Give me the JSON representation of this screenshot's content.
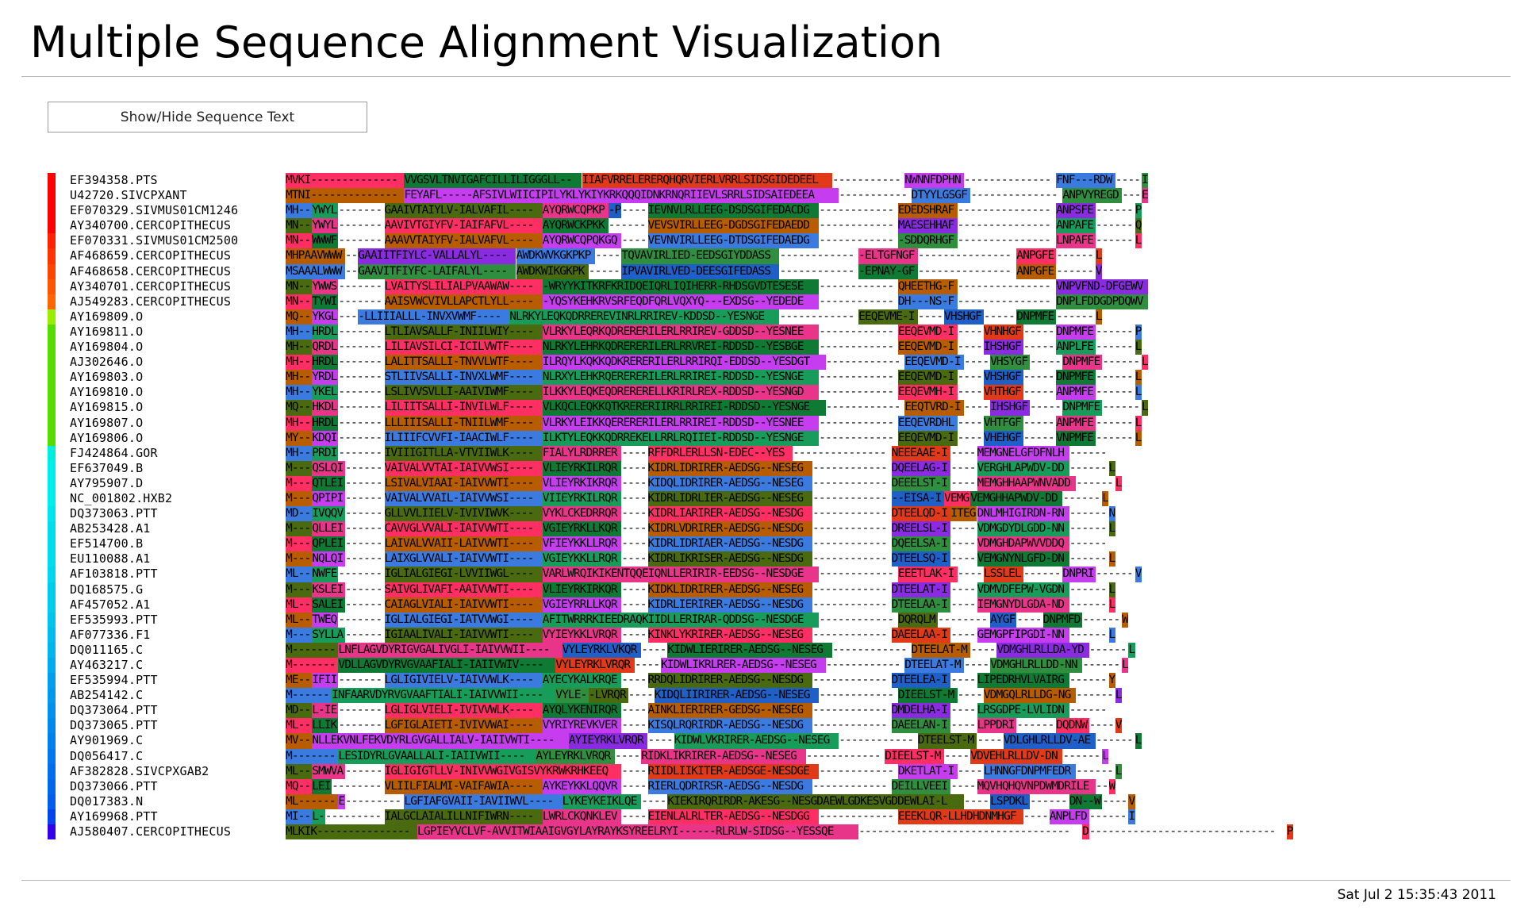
{
  "page": {
    "title": "Multiple Sequence Alignment Visualization",
    "toggle_label": "Show/Hide Sequence Text",
    "timestamp": "Sat Jul 2 15:35:43 2011"
  },
  "alignment": {
    "sequences": [
      {
        "name": "EF394358.PTS",
        "group_color": "#ff0000",
        "segs": [
          "MVKI--------------",
          "VVGSVLTNVIGAFCILLILIGGGLL--",
          "IIAFVRRELERERQHQRVIERLVRRLSIDSGIDEDEEL",
          "-----------",
          "NWNNFDPHN",
          "--------------",
          "FNF---RDW",
          "----",
          "I"
        ]
      },
      {
        "name": "U42720.SIVCPXANT",
        "group_color": "#ff0000",
        "segs": [
          "MTNI--------------",
          "FEYAFL-----AFSIVLWIICIPILYKLYKIYKRKQQQIDNKRNQRIIEVLSRRLSIDSAIEDEEA",
          "-----------",
          "DTYYLGSGF",
          "--------------",
          "ANPVYREGD",
          "---",
          "E"
        ]
      },
      {
        "name": "EF070329.SIVMUS01CM1246",
        "group_color": "#ff0000",
        "segs": [
          "MH--",
          "YWYL",
          "-------",
          "GAAIVTAIYLV-IALVAFIL----",
          "AYQRWCQPKP",
          "-P",
          "----",
          "IEVNVLRLLEEG-DSDSGIFEDACDG",
          "------------",
          "EDEDSHRAF",
          "---------------",
          "ANPSFE",
          "------",
          "P"
        ]
      },
      {
        "name": "AY340700.CERCOPITHECUS",
        "group_color": "#ff0000",
        "segs": [
          "MN--",
          "YWYL",
          "-------",
          "AAVIVTGIYFV-IAIFAFVL----",
          "AYQRWCKPKK",
          "------",
          "VEVSVIRLLEEG-DGDSGIFEDAEDD",
          "------------",
          "MAESEHHAF",
          "---------------",
          "ANPAFE",
          "------",
          "Q"
        ]
      },
      {
        "name": "EF070331.SIVMUS01CM2500",
        "group_color": "#ff2200",
        "segs": [
          "MN--",
          "WWWF",
          "-------",
          "AAAVVTAIYFV-IALVAFVL----",
          "AYQRWCQPQKGQ",
          "----",
          "VEVNVIRLLEEG-DTDSGIFEDAEDG",
          "------------",
          "-SDDQRHGF",
          "---------------",
          "LNPAFE",
          "------",
          "L"
        ]
      },
      {
        "name": "AF468659.CERCOPITHECUS",
        "group_color": "#ff3300",
        "segs": [
          "MHPAAVWWW",
          "--",
          "GAAIITFIYLC-VALLALYL----",
          "AWDKWVKGKPKP",
          "----",
          "TQVAVIRLIED-EEDSGIYDDASS",
          "------------",
          "-ELTGFNGF",
          "---------------",
          "ANPGFE",
          "------",
          "L"
        ]
      },
      {
        "name": "AF468658.CERCOPITHECUS",
        "group_color": "#ff4400",
        "segs": [
          "MSAAALWWW",
          "--",
          "GAAVITFIYFC-LAIFALYL----",
          "AWDKWIKGKPK",
          "-----",
          "IPVAVIRLVED-DEESGIFEDASS",
          "------------",
          "-EPNAY-GF",
          "---------------",
          "ANPGFE",
          "------",
          "V"
        ]
      },
      {
        "name": "AY340701.CERCOPITHECUS",
        "group_color": "#ff5500",
        "segs": [
          "MN--",
          "YWWS",
          "-------",
          "LVAITYSLILIALPVAAWAW----",
          "-WRYYKITKRFKRIDQEIQRLIQIHERR-RHDSGVDTESESE",
          "------------",
          "QHEETHG-F",
          "---------------",
          "VNPVFND-DFGEWV"
        ]
      },
      {
        "name": "AJ549283.CERCOPITHECUS",
        "group_color": "#ff6600",
        "segs": [
          "MN--",
          "TYWI",
          "-------",
          "AAISVWCVIVLLAPCTLYLL----",
          "-YQSYKEHKRVSRFEQDFQRLVQXYQ---EXDSG--YEDEDE",
          "------------",
          "DH---NS-F",
          "---------------",
          "DNPLFDDGDPDQWV"
        ]
      },
      {
        "name": "AY169809.O",
        "group_color": "#99ee00",
        "segs": [
          "MQ--",
          "YKGL",
          "---",
          "-LLIIIALLL-INVXVWMF----",
          "NLRKYLEQKQDRREREVINRLRRIREV-KDDSD--YESNGE",
          "------------",
          "EEQEVME-I",
          "----",
          "VHSHGF",
          "-----",
          "DNPMFE",
          "------",
          "L"
        ]
      },
      {
        "name": "AY169811.O",
        "group_color": "#55dd00",
        "segs": [
          "MH--",
          "HRDL",
          "-------",
          "LTLIAVSALLF-INIILWIY----",
          "VLRKYLEQRKQDRERERILERLRRIREV-GDDSD--YESNEE",
          "------------",
          "EEQEVMD-I",
          "----",
          "VHNHGF",
          "-----",
          "DNPMFE",
          "------",
          "P"
        ]
      },
      {
        "name": "AY169804.O",
        "group_color": "#55dd00",
        "segs": [
          "MH--",
          "QRDL",
          "-------",
          "LILIAVSILCI-ICILVWTF----",
          "NLRKYLEHRKQDRERERILERLRRVREI-RDDSD--YESBGE",
          "------------",
          "EEQEVMD-I",
          "----",
          "IHSHGF",
          "-----",
          "ANPLFE",
          "------",
          "L"
        ]
      },
      {
        "name": "AJ302646.O",
        "group_color": "#55dd00",
        "segs": [
          "MH--",
          "HRDL",
          "-------",
          "LALITTSALLI-TNVVLWTF----",
          "ILRQYLKQKKQDKRERERILERLRRIRQI-EDDSD--YESDGT",
          "------------",
          "EEQEVMD-I",
          "----",
          "VHSYGF",
          "-----",
          "DNPMFE",
          "------",
          "L"
        ]
      },
      {
        "name": "AY169803.O",
        "group_color": "#55dd00",
        "segs": [
          "MH--",
          "YRDL",
          "-------",
          "STLIIVSALLI-INVXLWMF----",
          "NLRXYLEHKRQERERERILERLRRIREI-RDDSD--YESNGE",
          "------------",
          "EEQEVMD-I",
          "----",
          "VHSHGF",
          "-----",
          "DNPMFE",
          "------",
          "L"
        ]
      },
      {
        "name": "AY169810.O",
        "group_color": "#55dd00",
        "segs": [
          "MH--",
          "YKEL",
          "-------",
          "LSLIVVSVLLI-AAIVIWMF----",
          "ILKKYLEQKEQDRERERELLKRIRLREX-RDDSD--YESNGD",
          "------------",
          "EEQEVMH-I",
          "----",
          "VHTHGF",
          "-----",
          "ANPMFE",
          "------",
          "L"
        ]
      },
      {
        "name": "AY169815.O",
        "group_color": "#55dd00",
        "segs": [
          "MQ--",
          "HKDL",
          "-------",
          "LILIITSALLI-INVILWLF----",
          "VLKQCLEQKKQTKRERERIIRRLRRIREI-RDDSD--YESNGE",
          "------------",
          "EEQTVRD-I",
          "----",
          "IHSHGF",
          "-----",
          "DNPMFE",
          "------",
          "L"
        ]
      },
      {
        "name": "AY169807.O",
        "group_color": "#55dd00",
        "segs": [
          "MH--",
          "HRDL",
          "-------",
          "LLLIIISALLI-TNIILWMF----",
          "VLRKYLEIKKQERERERILERLRRIREI-RDDSD--YESNEE",
          "------------",
          "EEQEVRDHL",
          "----",
          "VHTFGF",
          "-----",
          "ANPMFE",
          "------",
          "L"
        ]
      },
      {
        "name": "AY169806.O",
        "group_color": "#55dd00",
        "segs": [
          "MY--",
          "KDQI",
          "-------",
          "ILIIIFCVVFI-IAACIWLF----",
          "ILKTYLEQKKQDRREKELLRRLRQIIEI-RDDSD--YESNGE",
          "------------",
          "EEQEVMD-I",
          "----",
          "VHEHGF",
          "-----",
          "VNPMFE",
          "------",
          "L"
        ]
      },
      {
        "name": "FJ424864.GOR",
        "group_color": "#00eedd",
        "segs": [
          "MH--",
          "PRDI",
          "-------",
          "IVIIIGITLLA-VTVIIWLK----",
          "FIALYLRDRRER",
          "----",
          "RFFDRLERLLSN-EDEC--YES",
          "---------------",
          "NEEEAAE-I",
          "----",
          "MEMGNELGFDFNLH",
          "------"
        ]
      },
      {
        "name": "EF637049.B",
        "group_color": "#00eeee",
        "segs": [
          "M---",
          "QSLQI",
          "------",
          "VAIVALVVTAI-IAIVVWSI----",
          "VLIEYRKILRQR",
          "----",
          "KIDRLIDRIRER-AEDSG--NESEG",
          "------------",
          "DQEELAG-I",
          "----",
          "VERGHLAPWDV-DD",
          "------",
          "L"
        ]
      },
      {
        "name": "AY795907.D",
        "group_color": "#00eeee",
        "segs": [
          "M---",
          "QTLEI",
          "------",
          "LSIVALVIAAI-IAIVVWTI----",
          "VLIEYRKIKRQR",
          "----",
          "KIDQLIDRIRER-AEDSG--NESEG",
          "------------",
          "DEEELST-I",
          "----",
          "MEMGHHAAPWNVADD",
          "------",
          "L"
        ]
      },
      {
        "name": "NC_001802.HXB2",
        "group_color": "#00eeee",
        "segs": [
          "M---",
          "QPIPI",
          "------",
          "VAIVALVVAIL-IAIVVWSI----",
          "VIIEYRKILRQR",
          "----",
          "KIDRLIDRLIER-AEDSG--NESEG",
          "------------",
          "--EISA-I",
          "VEMG",
          "VEMGHHAPWDV-DD",
          "------",
          "L"
        ]
      },
      {
        "name": "DQ373063.PTT",
        "group_color": "#00e6ee",
        "segs": [
          "MD--",
          "IVQQV",
          "------",
          "GLLVVLIIELV-IVIVIWVK----",
          "VYKLCKEDRRQR",
          "----",
          "KIDRLIARIRER-AEDSG--NESDG",
          "------------",
          "DTEELQD-I",
          "ITEG",
          "DNLMHIGIRDN-RN",
          "------",
          "N"
        ]
      },
      {
        "name": "AB253428.A1",
        "group_color": "#00ddee",
        "segs": [
          "M---",
          "QLLEI",
          "------",
          "CAVVGLVVALI-IAIVVWTI----",
          "VGIEYRKLLKQR",
          "----",
          "KIDRLVDRIRER-AEDSG--NESDG",
          "------------",
          "DREELSL-I",
          "----",
          "VDMGDYDLGDD-NN",
          "------",
          "L"
        ]
      },
      {
        "name": "EF514700.B",
        "group_color": "#00ddee",
        "segs": [
          "M---",
          "QPLEI",
          "------",
          "LAIVALVVAII-LAIVVWTI----",
          "VFIEYKKLLRQR",
          "----",
          "KIDRLIDRIAER-AEDSG--NESDG",
          "------------",
          "DQEELSA-I",
          "----",
          "VDMGHDAPWVVDDQ",
          "------"
        ]
      },
      {
        "name": "EU110088.A1",
        "group_color": "#00ddee",
        "segs": [
          "M---",
          "NQLQI",
          "------",
          "LAIXGLVVALI-IAIVVWTI----",
          "VGIEYKKLLRQR",
          "----",
          "KIDRLIKRISER-AEDSG--NESDG",
          "------------",
          "DTEELSQ-I",
          "----",
          "VEMGNYNLGFD-DN",
          "------",
          "L"
        ]
      },
      {
        "name": "AF103818.PTT",
        "group_color": "#00d6ee",
        "segs": [
          "ML--",
          "NWFE",
          "-------",
          "IGLIALGIEGI-LVVIIWGL----",
          "VARLWRQIKIKENTQQEIQNLLERIRIR-EEDSG--NESDGE",
          "------------",
          "EEETLAK-I",
          "----",
          "LSSLEL",
          "------",
          "DNPRI",
          "------",
          "V"
        ]
      },
      {
        "name": "DQ168575.G",
        "group_color": "#00ccee",
        "segs": [
          "M---",
          "KSLEI",
          "------",
          "SAIVGLIVAFI-AAIVVWTI----",
          "VLIEYRKIRKQR",
          "----",
          "KIDKLIDRIRER-AEDSG--NESEG",
          "------------",
          "DTEELAT-I",
          "----",
          "VDMVDFEPW-VGDN",
          "------",
          "L"
        ]
      },
      {
        "name": "AF457052.A1",
        "group_color": "#00ccee",
        "segs": [
          "ML--",
          "SALEI",
          "------",
          "CAIAGLVIALI-IAIVVWTI----",
          "VGIEYRRLLKQR",
          "----",
          "KIDRLIERIRER-AEDSG--NESDG",
          "------------",
          "DTEELAA-I",
          "----",
          "IEMGNYDLGDA-ND",
          "------",
          "L"
        ]
      },
      {
        "name": "EF535993.PTT",
        "group_color": "#00c4ee",
        "segs": [
          "ML--",
          "TWEQ",
          "-------",
          "IGLIALGIEGI-IATVVWGI----",
          "AFITWRRRKIEEDRAQKIIDLLERIRAR-QDDSG--NESDGE",
          "------------",
          "DQRQLM",
          "--------",
          "AYGF",
          "----",
          "DNPMFD",
          "------",
          "W"
        ]
      },
      {
        "name": "AF077336.F1",
        "group_color": "#00bbee",
        "segs": [
          "M---",
          "SYLLA",
          "------",
          "IGIAALIVALI-IAIVVWTI----",
          "VYIEYKKLVRQR",
          "----",
          "KINKLYKRIRER-AEDSG--NESEG",
          "------------",
          "DAEELAA-I",
          "----",
          "GEMGPFIPGDI-NN",
          "------",
          "L"
        ]
      },
      {
        "name": "DQ011165.C",
        "group_color": "#00b4ee",
        "segs": [
          "M-------",
          "LNFLAGVDYRIGVGALIVGLI-IAIVVWII----",
          "VYLEYRKLVKQR",
          "----",
          "KIDWLIERIRER-AEDSG--NESEG",
          "------------",
          "DTEELAT-M",
          "----",
          "VDMGHLRLLDA-YD",
          "------",
          "L"
        ]
      },
      {
        "name": "AY463217.C",
        "group_color": "#00aaee",
        "segs": [
          "M-------",
          "VDLLAGVDYRVGVAAFIALI-IAIIVWIV----",
          "VYLEYRKLVRQR",
          "----",
          "KIDWLIKRLRER-AEDSG--NESEG",
          "------------",
          "DTEELAT-M",
          "----",
          "VDMGHLRLLDD-NN",
          "------",
          "L"
        ]
      },
      {
        "name": "EF535994.PTT",
        "group_color": "#009fee",
        "segs": [
          "ME--",
          "IFII",
          "-------",
          "LGLIGIVIELV-IAIVVWLK----",
          "AYECYKALKRQE",
          "----",
          "RRDQLIDRIRER-AEDSG--NESDG",
          "------------",
          "DTEELEA-I",
          "----",
          "LIPEDRHVLVAIRG",
          "------",
          "Y"
        ]
      },
      {
        "name": "AB254142.C",
        "group_color": "#0099ee",
        "segs": [
          "M------",
          "INFAARVDYRVGVAAFTIALI-IAIVVWII----",
          "VYLE-",
          "-LVRQR",
          "----",
          "KIDQLIIRIRER-AEDSG--NESEG",
          "------------",
          "DIEELST-M",
          "----",
          "VDMGQLRLLDG-NG",
          "------",
          "L"
        ]
      },
      {
        "name": "DQ373064.PTT",
        "group_color": "#0090ee",
        "segs": [
          "MD--",
          "L-IE",
          "-------",
          "LGLIGLVIELI-IVIVVWLK----",
          "AYQLYKENIRQR",
          "----",
          "AINKLIERIRER-GEDSG--NESEG",
          "------------",
          "DMDELHA-I",
          "----",
          "LRSGDPE-LVLIDN",
          "------"
        ]
      },
      {
        "name": "DQ373065.PTT",
        "group_color": "#0088ee",
        "segs": [
          "ML--",
          "LLIK",
          "-------",
          "LGFIGLAIETI-IVIVVWAI----",
          "VYRIYREVKVER",
          "----",
          "KISQLRQRIRDR-AEDSG--NESDG",
          "------------",
          "DAEELAN-I",
          "----",
          "LPPDRI",
          "------",
          "DQDNW",
          "----",
          "V"
        ]
      },
      {
        "name": "AY901969.C",
        "group_color": "#0080ee",
        "segs": [
          "MV--",
          "NLLEKVNLFEKVDYRLGVGALLIALV-IAIIVWTI----",
          "AYIEYRKLVRQR",
          "----",
          "KIDWLVKRIRER-AEDSG--NESEG",
          "------------",
          "DTEELST-M",
          "----",
          "VDLGHLRLLDV-AE",
          "------",
          "L"
        ]
      },
      {
        "name": "DQ056417.C",
        "group_color": "#0077ee",
        "segs": [
          "M-------",
          "LESIDYRLGVAALLALI-IAIIVWII----",
          "AYLEYRKLVRQR",
          "----",
          "RIDKLIKRIRER-AEDSG--NESEG",
          "------------",
          "DIEELST-M",
          "----",
          "VDVEHLRLLDV-DN",
          "------",
          "L"
        ]
      },
      {
        "name": "AF382828.SIVCPXGAB2",
        "group_color": "#006eee",
        "segs": [
          "ML--",
          "SMWVA",
          "------",
          "IGLIGIGTLLV-INIVVWGIVGISVYKRWKRHKEEQ",
          "----",
          "RIIDLIIKITER-AEDSGE-NESDGE",
          "------------",
          "DKETLAT-I",
          "----",
          "LHNNGFDNPMFEDR",
          "------",
          "L"
        ]
      },
      {
        "name": "DQ373066.PTT",
        "group_color": "#0066ee",
        "segs": [
          "MQ--",
          "LEI",
          "--------",
          "VLIILFIALMI-VAIFAWIA----",
          "AYKEYKKLQQVR",
          "----",
          "RIERLQDRIRSR-AEDSG--NESDG",
          "------------",
          "DEILLVEEI",
          "----",
          "MQVHQHQVNPDWMDRILE",
          "--",
          "W"
        ]
      },
      {
        "name": "DQ017383.N",
        "group_color": "#005eee",
        "segs": [
          "ML------",
          "E",
          "---------",
          "LGFIAFGVAII-IAVIIWVL----",
          "LYKEYKEIKLQE",
          "----",
          "KIEKIRQRIRDR-AKESG--NESGDAEWLGDKESVGDDEWLAI-L",
          "----",
          "LSPDKL",
          "------",
          "DN--W",
          "----",
          "V"
        ]
      },
      {
        "name": "AY169968.PTT",
        "group_color": "#0044ee",
        "segs": [
          "MI--",
          "L-",
          "---------",
          "IALGCLAIALILLNIFIWRN----",
          "LWRLCKQNKLEV",
          "----",
          "EIENLALRLTER-AEDSG--NESDGG",
          "------------",
          "EEEKLQR-LLHDHDNMHGF",
          "----",
          "ANPLFD",
          "------",
          "I"
        ]
      },
      {
        "name": "AJ580407.CERCOPITHECUS",
        "group_color": "#3300ee",
        "segs": [
          "MLKIK---------------",
          "LGPIEYVCLVF-AVVITWIAAIGVGYLAYRAYKSYREELRYI------RLRLW-SIDSG--YESSQE",
          "----------------------------------",
          "D",
          "------------------------------",
          "P"
        ]
      }
    ]
  }
}
